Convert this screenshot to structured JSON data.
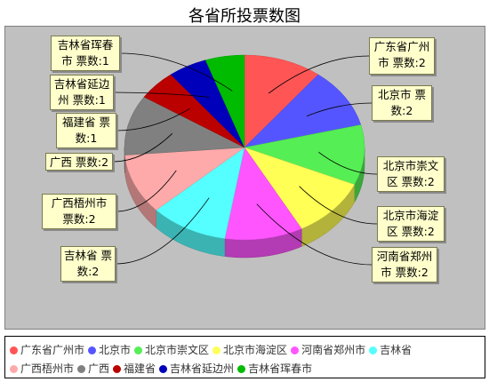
{
  "chart_data": {
    "type": "pie",
    "title": "各省所投票数图",
    "categories": [
      "广东省广州市",
      "北京市",
      "北京市崇文区",
      "北京市海淀区",
      "河南省郑州市",
      "吉林省",
      "广西梧州市",
      "广西",
      "福建省",
      "吉林省延边州",
      "吉林省珲春市"
    ],
    "values": [
      2,
      2,
      2,
      2,
      2,
      2,
      2,
      2,
      1,
      1,
      1
    ],
    "value_label": "票数",
    "colors": [
      "#ff5555",
      "#5555ff",
      "#55ee55",
      "#ffff55",
      "#ff55ff",
      "#55ffff",
      "#ffaaaa",
      "#808080",
      "#bb0000",
      "#0000bb",
      "#00bb00"
    ],
    "legend_position": "bottom",
    "slice_labels": [
      {
        "line1": "广东省广州",
        "line2": "市 票数:2"
      },
      {
        "line1": "北京市 票",
        "line2": "数:2"
      },
      {
        "line1": "北京市崇文",
        "line2": "区 票数:2"
      },
      {
        "line1": "北京市海淀",
        "line2": "区 票数:2"
      },
      {
        "line1": "河南省郑州",
        "line2": "市 票数:2"
      },
      {
        "line1": "吉林省 票",
        "line2": "数:2"
      },
      {
        "line1": "广西梧州市",
        "line2": "票数:2"
      },
      {
        "line1": "广西 票数:2",
        "line2": ""
      },
      {
        "line1": "福建省 票",
        "line2": "数:1"
      },
      {
        "line1": "吉林省延边",
        "line2": "州 票数:1"
      },
      {
        "line1": "吉林省珲春",
        "line2": "市 票数:1"
      }
    ]
  }
}
